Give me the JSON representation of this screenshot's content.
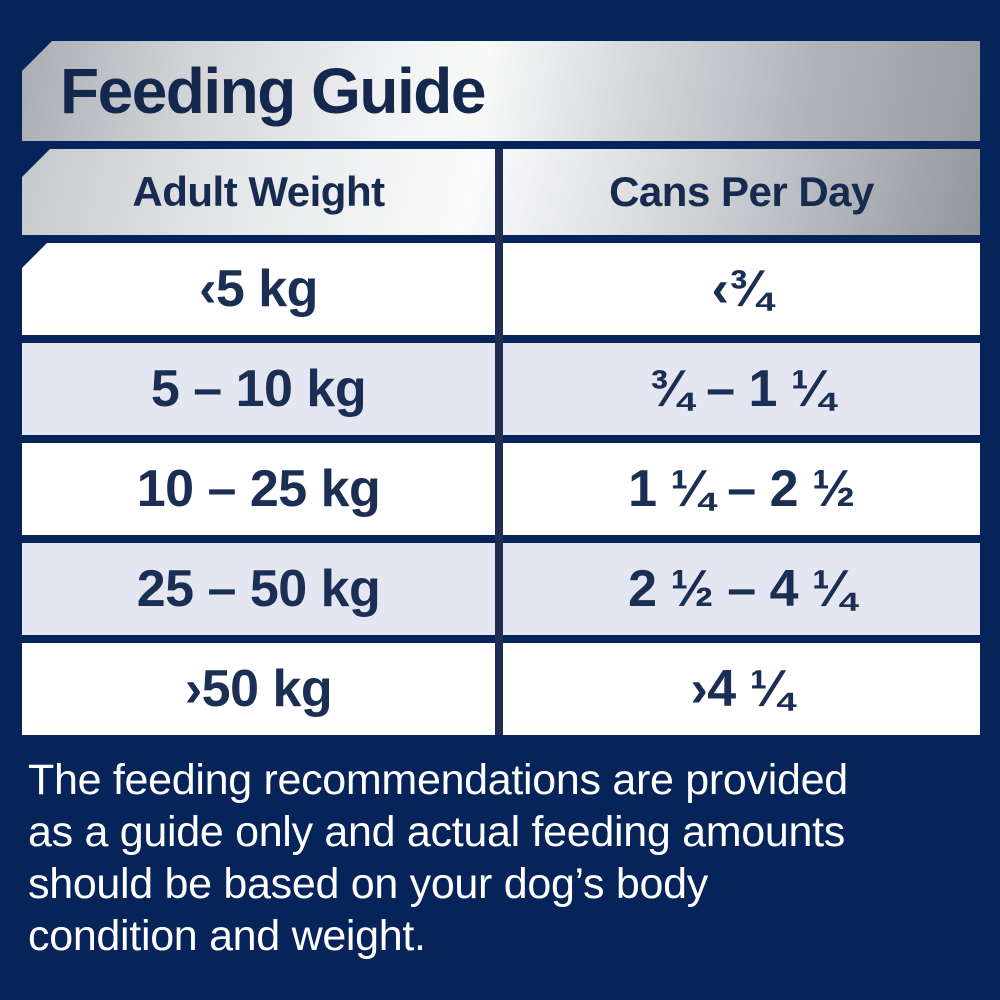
{
  "title": "Feeding Guide",
  "table": {
    "columns": [
      "Adult Weight",
      "Cans Per Day"
    ],
    "rows": [
      {
        "weight": "‹5 kg",
        "cans": "‹¾"
      },
      {
        "weight": "5 – 10 kg",
        "cans": "¾ – 1 ¼"
      },
      {
        "weight": "10 – 25 kg",
        "cans": "1 ¼ – 2 ½"
      },
      {
        "weight": "25 – 50 kg",
        "cans": "2 ½ – 4 ¼"
      },
      {
        "weight": "›50 kg",
        "cans": "›4 ¼"
      }
    ]
  },
  "footer": {
    "lines": [
      "The feeding recommendations are provided",
      "as a guide only and actual feeding amounts",
      "should be based on your dog’s body",
      "condition and weight."
    ]
  },
  "colors": {
    "background_navy": "#06235a",
    "table_line_navy": "#1f2d50",
    "text_navy": "#1b2e53",
    "row_white": "#ffffff",
    "row_lavender": "#e4e7f1",
    "silver_light": "#f8f9f9",
    "silver_dark": "#969ba2",
    "footer_text": "#ffffff"
  }
}
